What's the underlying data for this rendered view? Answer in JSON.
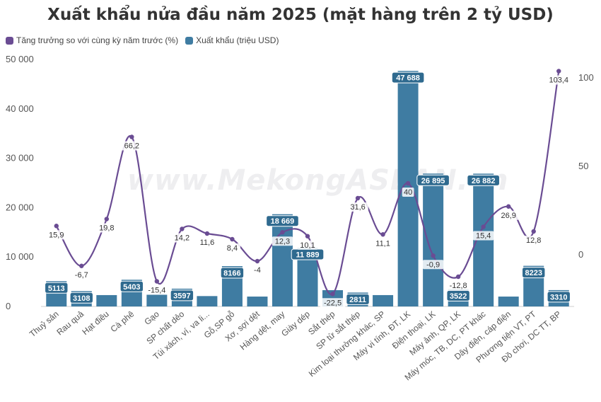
{
  "chart_data": {
    "type": "bar",
    "title": "Xuất khẩu nửa đầu năm 2025 (mặt hàng trên 2 tỷ USD)",
    "watermark": "www.MekongASEAN.vn",
    "categories": [
      "Thuỷ sản",
      "Rau quả",
      "Hạt điều",
      "Cà phê",
      "Gạo",
      "SP chất dẻo",
      "Túi xách, ví, va li...",
      "Gỗ,SP gỗ",
      "Xơ, sợi dệt",
      "Hàng dệt, may",
      "Giày dép",
      "Sắt thép",
      "SP từ sắt thép",
      "Kim loại thường khác, SP",
      "Máy vi tính, ĐT, LK",
      "Điện thoại, LK",
      "Máy ảnh, QP, LK",
      "Máy móc, TB, DC, PT khác",
      "Dây điện, cáp điện",
      "Phương tiện VT, PT",
      "Đồ chơi, DC TT, BP"
    ],
    "series": [
      {
        "name": "Xuất khẩu (triệu USD)",
        "type": "bar",
        "axis": "left",
        "color": "#3f7ca2",
        "values": [
          5113,
          3108,
          2300,
          5403,
          2400,
          3597,
          2100,
          8166,
          2000,
          18669,
          11889,
          3300,
          2811,
          2300,
          47688,
          26895,
          3522,
          26882,
          2000,
          8223,
          3310
        ],
        "labels": [
          "5113",
          "3108",
          "",
          "5403",
          "",
          "3597",
          "",
          "8166",
          "",
          "18 669",
          "11 889",
          "",
          "2811",
          "",
          "47 688",
          "26 895",
          "3522",
          "26 882",
          "",
          "8223",
          "3310"
        ]
      },
      {
        "name": "Tăng trưởng so với cùng kỳ năm trước (%)",
        "type": "line",
        "axis": "right",
        "color": "#6a4c93",
        "values": [
          15.9,
          -6.7,
          19.8,
          66.2,
          -15.4,
          14.2,
          11.6,
          8.4,
          -4,
          12.3,
          10.1,
          -22.5,
          31.6,
          11.1,
          40,
          -0.9,
          -12.8,
          15.4,
          26.9,
          12.8,
          103.4
        ],
        "labels": [
          "15,9",
          "-6,7",
          "19,8",
          "66,2",
          "-15,4",
          "14,2",
          "11,6",
          "8,4",
          "-4",
          "12,3",
          "10,1",
          "-22,5",
          "31,6",
          "11,1",
          "40",
          "-0,9",
          "-12,8",
          "15,4",
          "26,9",
          "12,8",
          "103,4"
        ]
      }
    ],
    "left_axis": {
      "ticks": [
        0,
        10000,
        20000,
        30000,
        40000,
        50000
      ],
      "tick_labels": [
        "0",
        "10 000",
        "20 000",
        "30 000",
        "40 000",
        "50 000"
      ],
      "ylim": [
        0,
        50000
      ]
    },
    "right_axis": {
      "ticks": [
        0,
        50,
        100
      ],
      "tick_labels": [
        "0",
        "50",
        "100"
      ]
    },
    "legend_position": "top-left",
    "grid": false
  }
}
